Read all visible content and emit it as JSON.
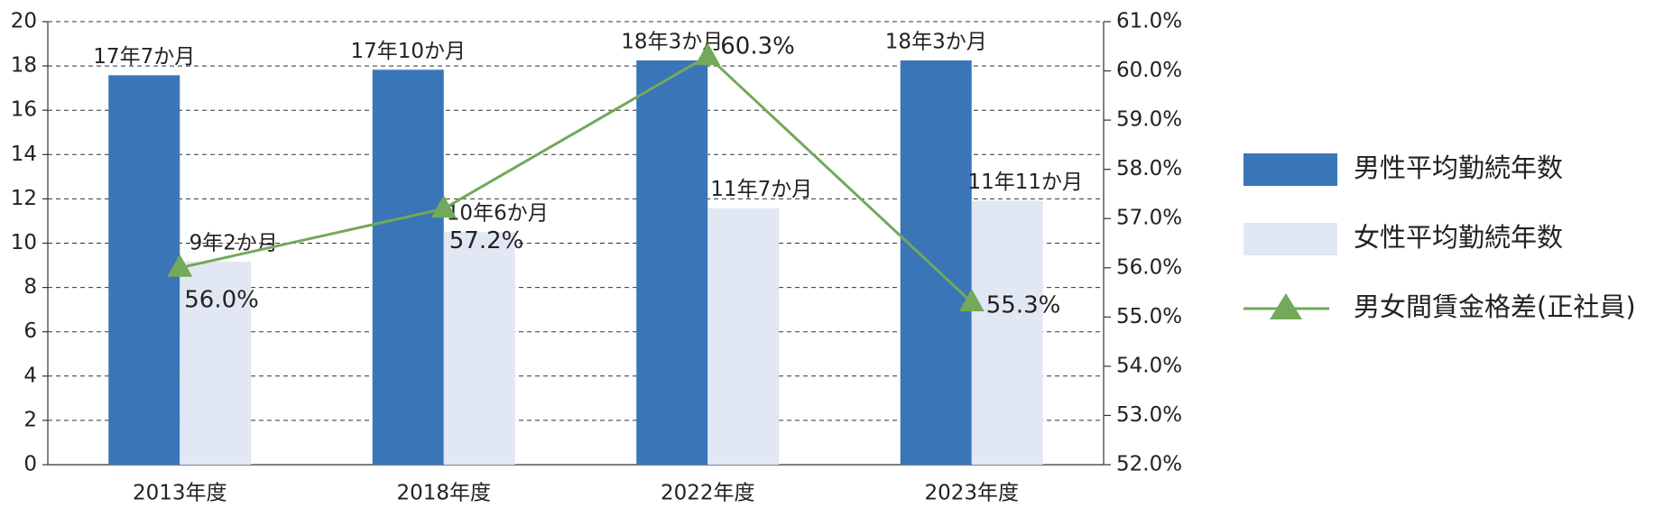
{
  "chart_data": {
    "type": "bar_line",
    "categories": [
      "2013年度",
      "2018年度",
      "2022年度",
      "2023年度"
    ],
    "series": [
      {
        "name": "男性平均勤続年数",
        "color": "#3a75b8",
        "values": [
          17.58,
          17.83,
          18.25,
          18.25
        ],
        "value_labels": [
          "17年7か月",
          "17年10か月",
          "18年3か月",
          "18年3か月"
        ]
      },
      {
        "name": "女性平均勤続年数",
        "color": "#e1e8f3",
        "values": [
          9.17,
          10.5,
          11.58,
          11.92
        ],
        "value_labels": [
          "9年2か月",
          "10年6か月",
          "11年7か月",
          "11年11か月"
        ]
      },
      {
        "name": "男女間賃金格差(正社員)",
        "color": "#72a95a",
        "axis": "y2",
        "values": [
          56.0,
          57.2,
          60.3,
          55.3
        ],
        "value_labels": [
          "56.0%",
          "57.2%",
          "60.3%",
          "55.3%"
        ]
      }
    ],
    "ylim": [
      0,
      20
    ],
    "yticks": [
      0,
      2,
      4,
      6,
      8,
      10,
      12,
      14,
      16,
      18,
      20
    ],
    "y2lim": [
      52,
      61
    ],
    "y2ticks": [
      {
        "value": 52,
        "label": "52.0%"
      },
      {
        "value": 53,
        "label": "53.0%"
      },
      {
        "value": 54,
        "label": "54.0%"
      },
      {
        "value": 55,
        "label": "55.0%"
      },
      {
        "value": 56,
        "label": "56.0%"
      },
      {
        "value": 57,
        "label": "57.0%"
      },
      {
        "value": 58,
        "label": "58.0%"
      },
      {
        "value": 59,
        "label": "59.0%"
      },
      {
        "value": 60,
        "label": "60.0%"
      },
      {
        "value": 61,
        "label": "61.0%"
      }
    ],
    "grid": true,
    "legend": "right"
  }
}
